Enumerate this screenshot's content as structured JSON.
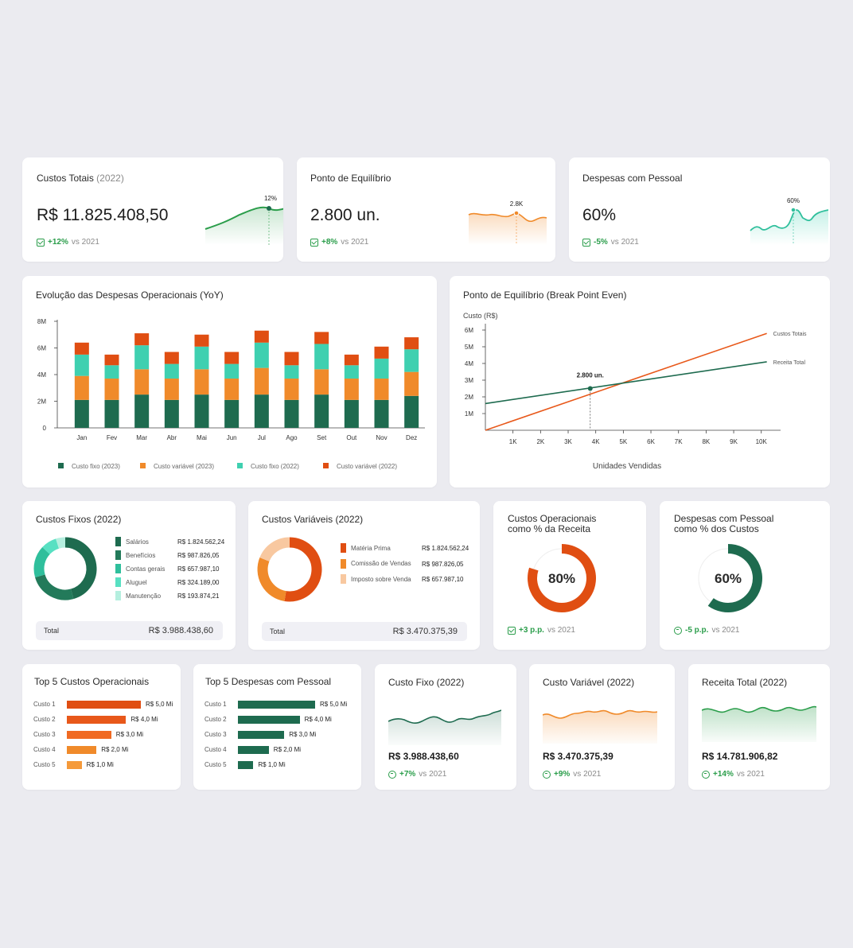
{
  "colors": {
    "dark_green": "#1e6b4f",
    "orange": "#f08a2a",
    "teal": "#3fd0b0",
    "red_orange": "#e04e12",
    "green_delta": "#2a9d4a"
  },
  "kpis": [
    {
      "title": "Custos Totais",
      "title_suffix": "(2022)",
      "value": "R$ 11.825.408,50",
      "delta": "+12%",
      "vs": "vs 2021",
      "peak_label": "12%"
    },
    {
      "title": "Ponto de Equilíbrio",
      "title_suffix": "",
      "value": "2.800 un.",
      "delta": "+8%",
      "vs": "vs 2021",
      "peak_label": "2.8K"
    },
    {
      "title": "Despesas com Pessoal",
      "title_suffix": "",
      "value": "60%",
      "delta": "-5%",
      "vs": "vs 2021",
      "peak_label": "60%"
    }
  ],
  "chart_data": [
    {
      "type": "bar",
      "title": "Evolução das Despesas Operacionais (YoY)",
      "stacked": true,
      "categories": [
        "Jan",
        "Fev",
        "Mar",
        "Abr",
        "Mai",
        "Jun",
        "Jul",
        "Ago",
        "Set",
        "Out",
        "Nov",
        "Dez"
      ],
      "y_ticks": [
        "0",
        "2M",
        "4M",
        "6M",
        "8M"
      ],
      "ylim": [
        0,
        8
      ],
      "series": [
        {
          "name": "Custo fixo (2023)",
          "color": "#1e6b4f",
          "values": [
            2.1,
            2.1,
            2.5,
            2.1,
            2.5,
            2.1,
            2.5,
            2.1,
            2.5,
            2.1,
            2.1,
            2.4
          ]
        },
        {
          "name": "Custo variável (2023)",
          "color": "#f08a2a",
          "values": [
            1.8,
            1.6,
            1.9,
            1.6,
            1.9,
            1.6,
            2.0,
            1.6,
            1.9,
            1.6,
            1.6,
            1.8
          ]
        },
        {
          "name": "Custo fixo (2022)",
          "color": "#3fd0b0",
          "values": [
            1.6,
            1.0,
            1.8,
            1.1,
            1.7,
            1.1,
            1.9,
            1.0,
            1.9,
            1.0,
            1.5,
            1.7
          ]
        },
        {
          "name": "Custo variável (2022)",
          "color": "#e04e12",
          "values": [
            0.9,
            0.8,
            0.9,
            0.9,
            0.9,
            0.9,
            0.9,
            1.0,
            0.9,
            0.8,
            0.9,
            0.9
          ]
        }
      ],
      "legend": "bottom"
    },
    {
      "type": "line",
      "title": "Ponto de Equilíbrio (Break Point Even)",
      "ylabel": "Custo (R$)",
      "xlabel": "Unidades Vendidas",
      "x_ticks": [
        "1K",
        "2K",
        "3K",
        "4K",
        "5K",
        "6K",
        "7K",
        "8K",
        "9K",
        "10K"
      ],
      "y_ticks": [
        "1M",
        "2M",
        "3M",
        "4M",
        "5M",
        "6M"
      ],
      "xlim": [
        0,
        10.7
      ],
      "ylim": [
        0,
        6
      ],
      "series": [
        {
          "name": "Custos Totais",
          "color": "#e8581a",
          "x": [
            0,
            10.2
          ],
          "y": [
            0,
            5.8
          ]
        },
        {
          "name": "Receita Total",
          "color": "#1e6b4f",
          "x": [
            0,
            10.2
          ],
          "y": [
            1.6,
            4.1
          ]
        }
      ],
      "annotation": {
        "label": "2.800 un.",
        "x": 3.8,
        "y": 2.5
      }
    },
    {
      "type": "pie",
      "title": "Custos Fixos (2022)",
      "categories": [
        "Salários",
        "Benefícios",
        "Contas gerais",
        "Aluguel",
        "Manutenção"
      ],
      "values": [
        1824562.24,
        987826.05,
        657987.1,
        324189.0,
        193874.21
      ],
      "value_labels": [
        "R$ 1.824.562,24",
        "R$ 987.826,05",
        "R$ 657.987,10",
        "R$ 324.189,00",
        "R$ 193.874,21"
      ],
      "colors": [
        "#1e6b4f",
        "#237a5a",
        "#2fbf9c",
        "#58e0c2",
        "#b5efdf"
      ],
      "total_label": "Total",
      "total_value": "R$ 3.988.438,60"
    },
    {
      "type": "pie",
      "title": "Custos Variáveis (2022)",
      "categories": [
        "Matéria Prima",
        "Comissão de Vendas",
        "Imposto sobre Venda"
      ],
      "values": [
        1824562.24,
        987826.05,
        657987.1
      ],
      "value_labels": [
        "R$ 1.824.562,24",
        "R$ 987.826,05",
        "R$ 657.987,10"
      ],
      "colors": [
        "#e04e12",
        "#f08a2a",
        "#f8c8a0"
      ],
      "total_label": "Total",
      "total_value": "R$ 3.470.375,39"
    },
    {
      "type": "pie",
      "title": "Custos Operacionais como % da Receita",
      "value": 80,
      "label": "80%",
      "color": "#e04e12",
      "delta": "+3 p.p.",
      "vs": "vs 2021"
    },
    {
      "type": "pie",
      "title": "Despesas com Pessoal como % dos Custos",
      "value": 60,
      "label": "60%",
      "color": "#1e6b4f",
      "delta": "-5 p.p.",
      "vs": "vs 2021"
    },
    {
      "type": "bar",
      "orientation": "horizontal",
      "title": "Top 5 Custos Operacionais",
      "categories": [
        "Custo 1",
        "Custo 2",
        "Custo 3",
        "Custo 4",
        "Custo 5"
      ],
      "values": [
        5,
        4,
        3,
        2,
        1
      ],
      "value_labels": [
        "R$ 5,0 Mi",
        "R$ 4,0 Mi",
        "R$ 3,0 Mi",
        "R$ 2,0 Mi",
        "R$ 1,0 Mi"
      ],
      "colors": [
        "#e04e12",
        "#e8581a",
        "#f06a22",
        "#f08a2a",
        "#f59a3a"
      ]
    },
    {
      "type": "bar",
      "orientation": "horizontal",
      "title": "Top 5 Despesas com Pessoal",
      "categories": [
        "Custo 1",
        "Custo 2",
        "Custo 3",
        "Custo 4",
        "Custo 5"
      ],
      "values": [
        5,
        4,
        3,
        2,
        1
      ],
      "value_labels": [
        "R$ 5,0 Mi",
        "R$ 4,0 Mi",
        "R$ 3,0 Mi",
        "R$ 2,0 Mi",
        "R$ 1,0 Mi"
      ],
      "colors": [
        "#1e6b4f",
        "#1e6b4f",
        "#1e6b4f",
        "#1e6b4f",
        "#1e6b4f"
      ]
    }
  ],
  "mini_cards": [
    {
      "title": "Custo Fixo (2022)",
      "value": "R$ 3.988.438,60",
      "delta": "+7%",
      "vs": "vs 2021",
      "color": "#1e6b4f"
    },
    {
      "title": "Custo Variável (2022)",
      "value": "R$ 3.470.375,39",
      "delta": "+9%",
      "vs": "vs 2021",
      "color": "#f08a2a"
    },
    {
      "title": "Receita Total (2022)",
      "value": "R$ 14.781.906,82",
      "delta": "+14%",
      "vs": "vs 2021",
      "color": "#2a9d4a"
    }
  ]
}
